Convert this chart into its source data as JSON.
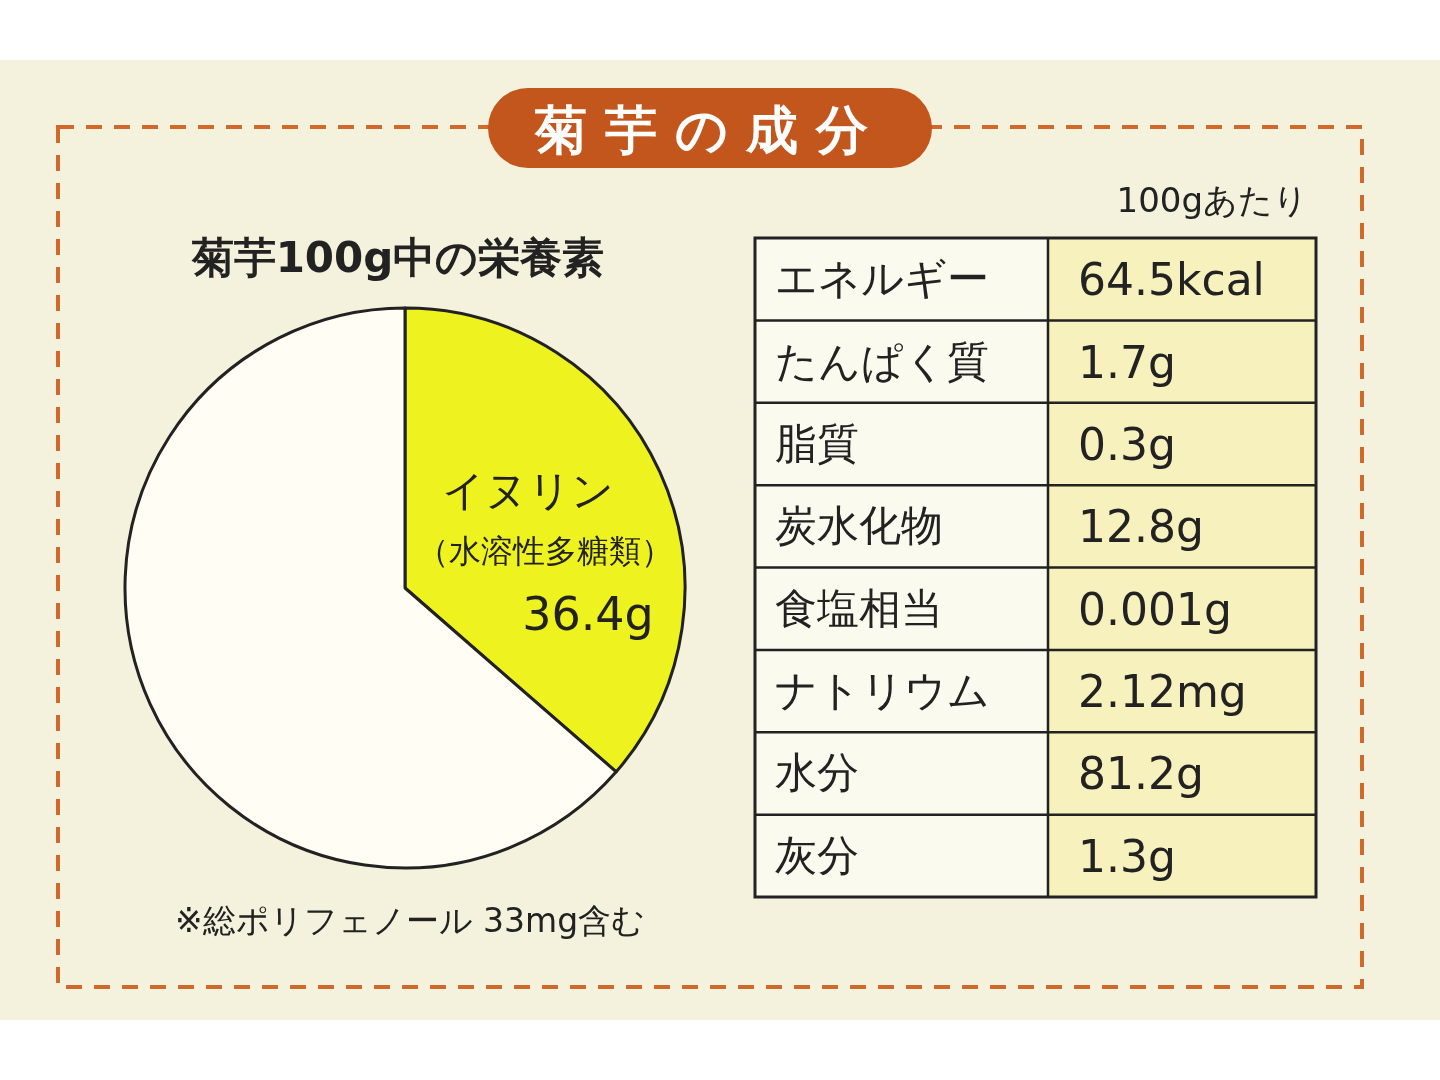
{
  "chart_data": [
    {
      "type": "pie",
      "title": "菊芋の成分",
      "subtitle": "菊芋100g中の栄養素",
      "categories": [
        "イヌリン",
        null
      ],
      "values": [
        36.4,
        63.6
      ],
      "colors": [
        "#eef21e",
        "#fffdf4"
      ],
      "value_labels": [
        "36.4g",
        null
      ],
      "annotations": [
        "（水溶性多糖類）",
        "※総ポリフェノール 33mg含む"
      ]
    },
    {
      "type": "other",
      "subtitle": "100gあたり",
      "categories": [
        "エネルギー",
        "たんぱく質",
        "脂質",
        "炭水化物",
        "食塩相当",
        "ナトリウム",
        "水分",
        "灰分"
      ],
      "value_labels": [
        "64.5kcal",
        "1.7g",
        "0.3g",
        "12.8g",
        "0.001g",
        "2.12mg",
        "81.2g",
        "1.3g"
      ]
    }
  ]
}
